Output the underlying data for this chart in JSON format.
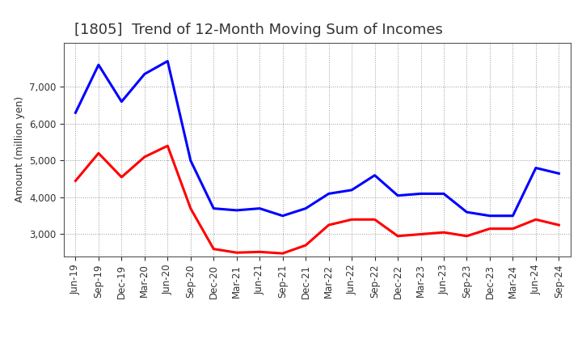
{
  "title": "[1805]  Trend of 12-Month Moving Sum of Incomes",
  "ylabel": "Amount (million yen)",
  "xlabels": [
    "Jun-19",
    "Sep-19",
    "Dec-19",
    "Mar-20",
    "Jun-20",
    "Sep-20",
    "Dec-20",
    "Mar-21",
    "Jun-21",
    "Sep-21",
    "Dec-21",
    "Mar-22",
    "Jun-22",
    "Sep-22",
    "Dec-22",
    "Mar-23",
    "Jun-23",
    "Sep-23",
    "Dec-23",
    "Mar-24",
    "Jun-24",
    "Sep-24"
  ],
  "ordinary_income": [
    6300,
    7600,
    6600,
    7350,
    7700,
    5000,
    3700,
    3650,
    3700,
    3500,
    3700,
    4100,
    4200,
    4600,
    4050,
    4100,
    4100,
    3600,
    3500,
    3500,
    4800,
    4650
  ],
  "net_income": [
    4450,
    5200,
    4550,
    5100,
    5400,
    3700,
    2600,
    2500,
    2520,
    2480,
    2700,
    3250,
    3400,
    3400,
    2950,
    3000,
    3050,
    2950,
    3150,
    3150,
    3400,
    3250
  ],
  "ordinary_color": "#0000ff",
  "net_color": "#ff0000",
  "ylim_min": 2400,
  "ylim_max": 8200,
  "yticks": [
    3000,
    4000,
    5000,
    6000,
    7000
  ],
  "background_color": "#ffffff",
  "grid_color": "#999999",
  "title_fontsize": 13,
  "axis_label_fontsize": 9,
  "tick_fontsize": 8.5,
  "line_width": 2.2,
  "text_color": "#333333"
}
